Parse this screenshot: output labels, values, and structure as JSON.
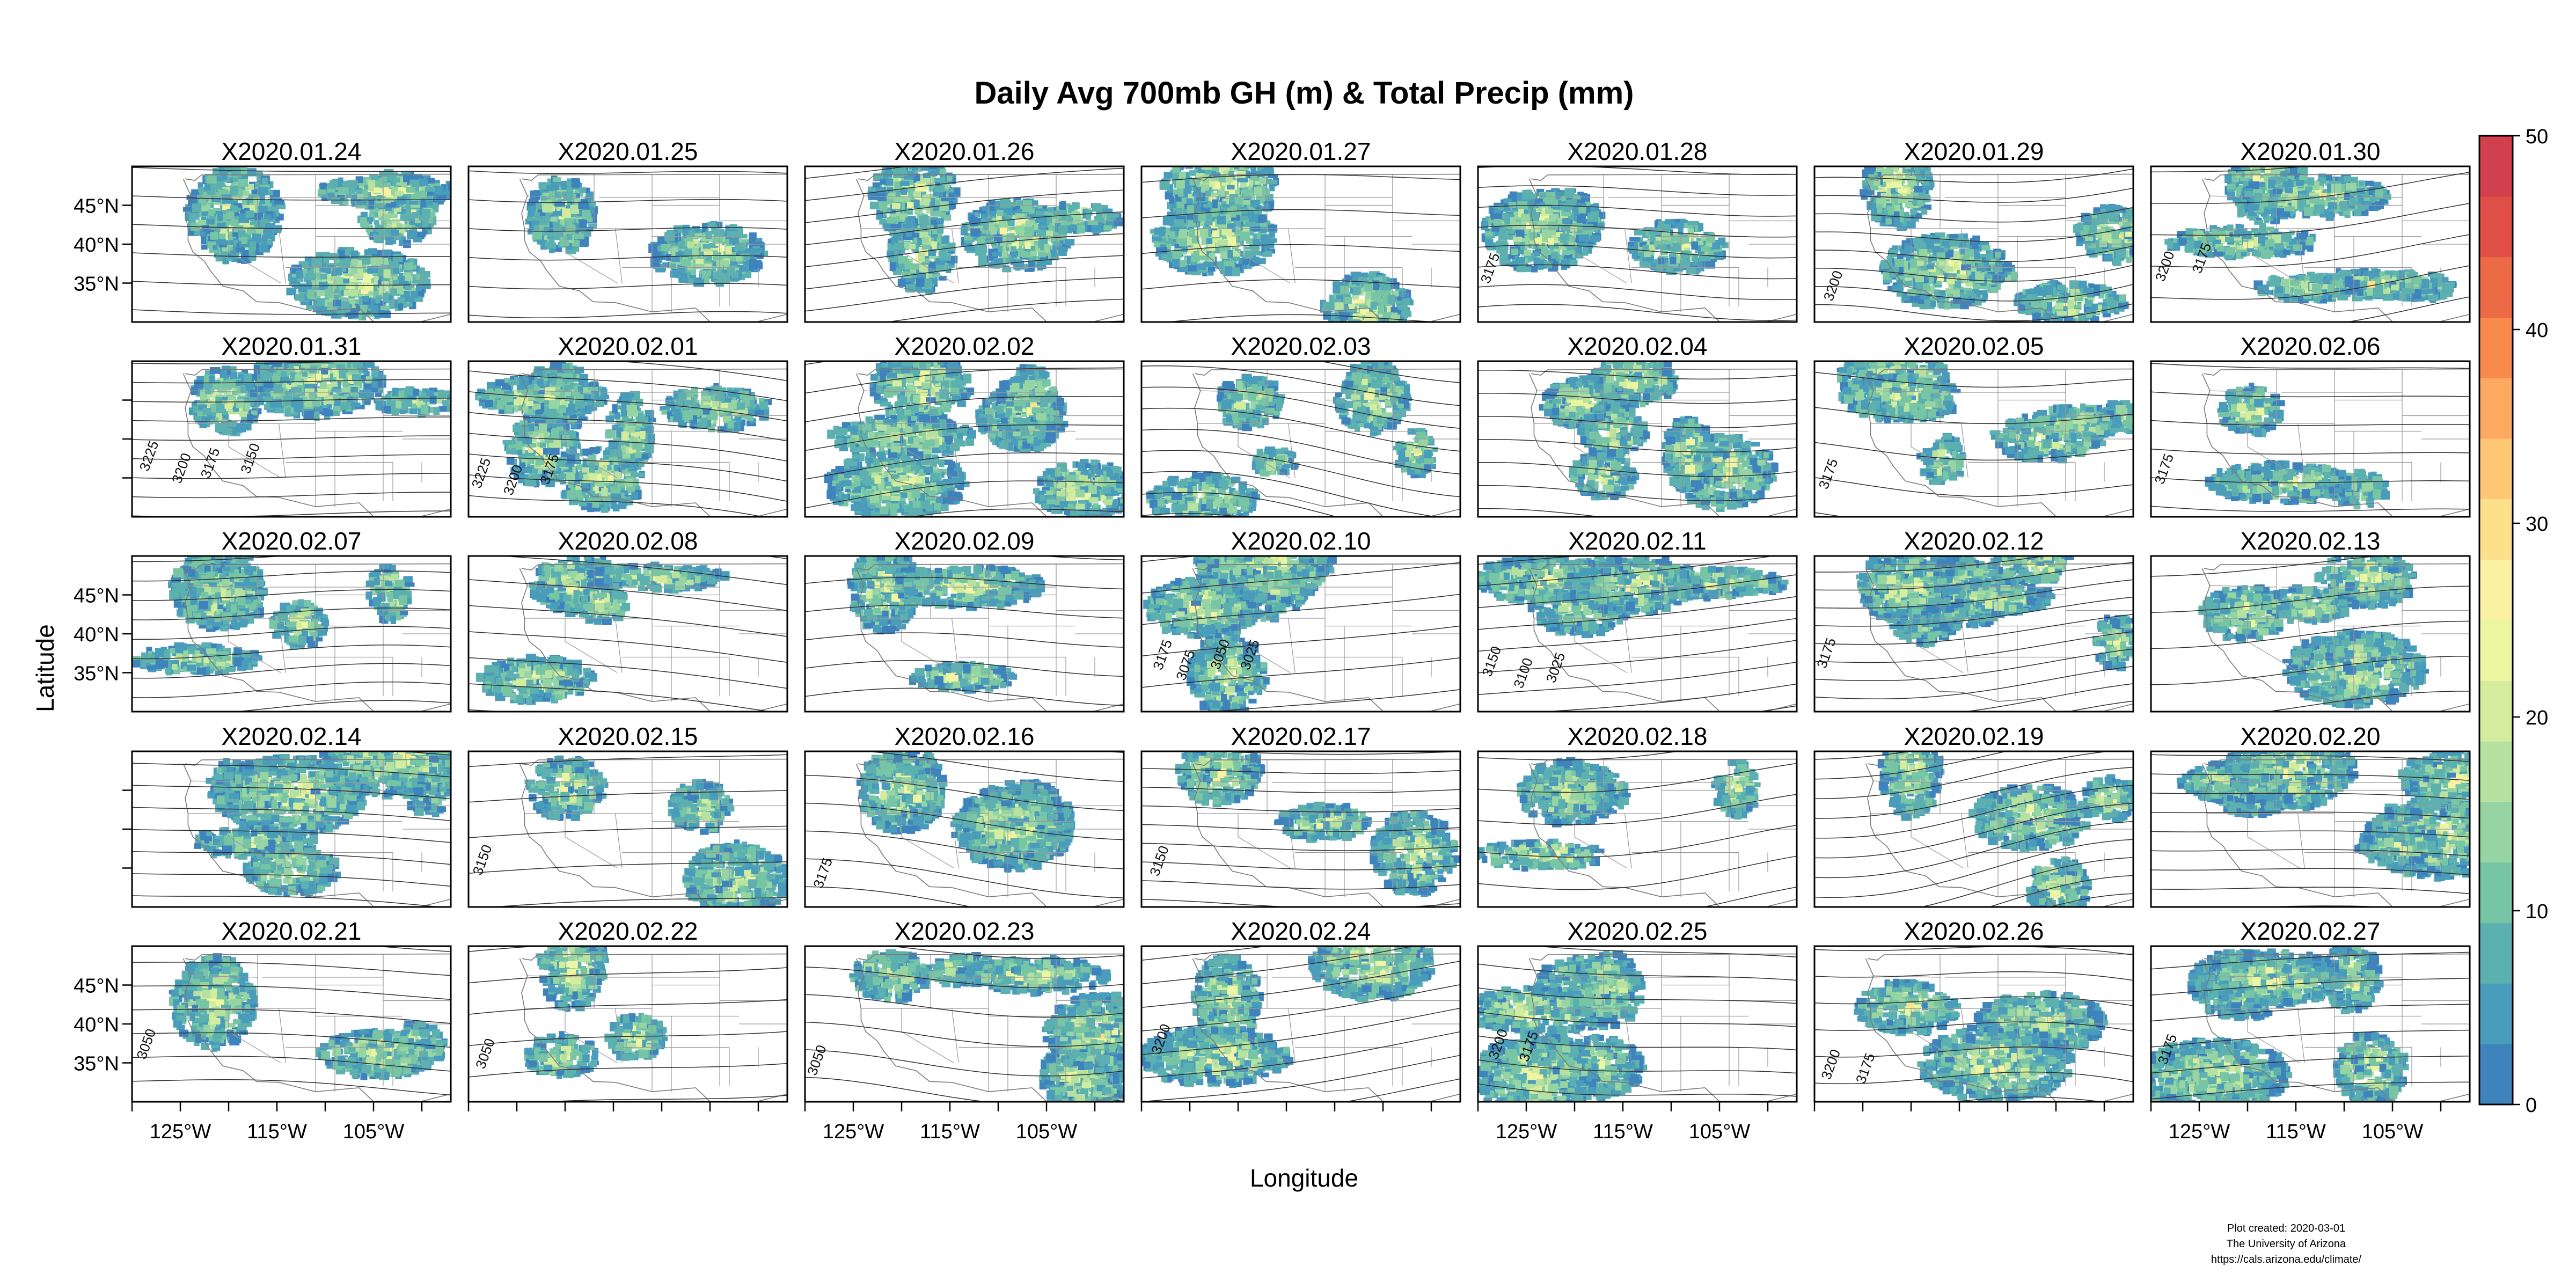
{
  "title": "Daily Avg 700mb GH (m) & Total Precip (mm)",
  "xlabel": "Longitude",
  "ylabel": "Latitude",
  "credits": {
    "line1": "Plot created: 2020-03-01",
    "line2": "The University of Arizona",
    "line3": "https://cals.arizona.edu/climate/"
  },
  "chart_data": {
    "type": "heatmap",
    "title": "Daily Avg 700mb GH (m) & Total Precip (mm)",
    "xlabel": "Longitude",
    "ylabel": "Latitude",
    "panels": [
      "X2020.01.24",
      "X2020.01.25",
      "X2020.01.26",
      "X2020.01.27",
      "X2020.01.28",
      "X2020.01.29",
      "X2020.01.30",
      "X2020.01.31",
      "X2020.02.01",
      "X2020.02.02",
      "X2020.02.03",
      "X2020.02.04",
      "X2020.02.05",
      "X2020.02.06",
      "X2020.02.07",
      "X2020.02.08",
      "X2020.02.09",
      "X2020.02.10",
      "X2020.02.11",
      "X2020.02.12",
      "X2020.02.13",
      "X2020.02.14",
      "X2020.02.15",
      "X2020.02.16",
      "X2020.02.17",
      "X2020.02.18",
      "X2020.02.19",
      "X2020.02.20",
      "X2020.02.21",
      "X2020.02.22",
      "X2020.02.23",
      "X2020.02.24",
      "X2020.02.25",
      "X2020.02.26",
      "X2020.02.27"
    ],
    "xlim": [
      -130,
      -97
    ],
    "ylim": [
      30,
      50
    ],
    "x_ticks": [
      -125,
      -115,
      -105
    ],
    "x_tick_labels": [
      "125°W",
      "115°W",
      "105°W"
    ],
    "y_ticks": [
      35,
      40,
      45
    ],
    "y_tick_labels": [
      "35°N",
      "40°N",
      "45°N"
    ],
    "colorbar": {
      "min": 0,
      "max": 50,
      "ticks": [
        0,
        10,
        20,
        30,
        40,
        50
      ],
      "colors": [
        "#3f83bd",
        "#4a9cbb",
        "#5cb1b0",
        "#77c5a5",
        "#96d4a4",
        "#b6e1a1",
        "#d4ec9d",
        "#ecf5a2",
        "#fbf1a3",
        "#fde08b",
        "#fdc776",
        "#fca961",
        "#f88a4e",
        "#ec6a45",
        "#e04f47",
        "#d23f4d"
      ]
    },
    "contour_labels": {
      "X2020.01.28": [
        "3175"
      ],
      "X2020.01.29": [
        "3200"
      ],
      "X2020.01.30": [
        "3200",
        "3175"
      ],
      "X2020.01.31": [
        "3225",
        "3200",
        "3175",
        "3150"
      ],
      "X2020.02.01": [
        "3225",
        "3200",
        "3175"
      ],
      "X2020.02.05": [
        "3175"
      ],
      "X2020.02.06": [
        "3175"
      ],
      "X2020.02.10": [
        "3175",
        "3075",
        "3050",
        "3025"
      ],
      "X2020.02.11": [
        "3150",
        "3100",
        "3025"
      ],
      "X2020.02.12": [
        "3175"
      ],
      "X2020.02.15": [
        "3150"
      ],
      "X2020.02.16": [
        "3175"
      ],
      "X2020.02.17": [
        "3150"
      ],
      "X2020.02.21": [
        "3050"
      ],
      "X2020.02.22": [
        "3050"
      ],
      "X2020.02.23": [
        "3050"
      ],
      "X2020.02.24": [
        "3200"
      ],
      "X2020.02.25": [
        "3200",
        "3175"
      ],
      "X2020.02.26": [
        "3200",
        "3175"
      ],
      "X2020.02.27": [
        "3175"
      ]
    }
  }
}
